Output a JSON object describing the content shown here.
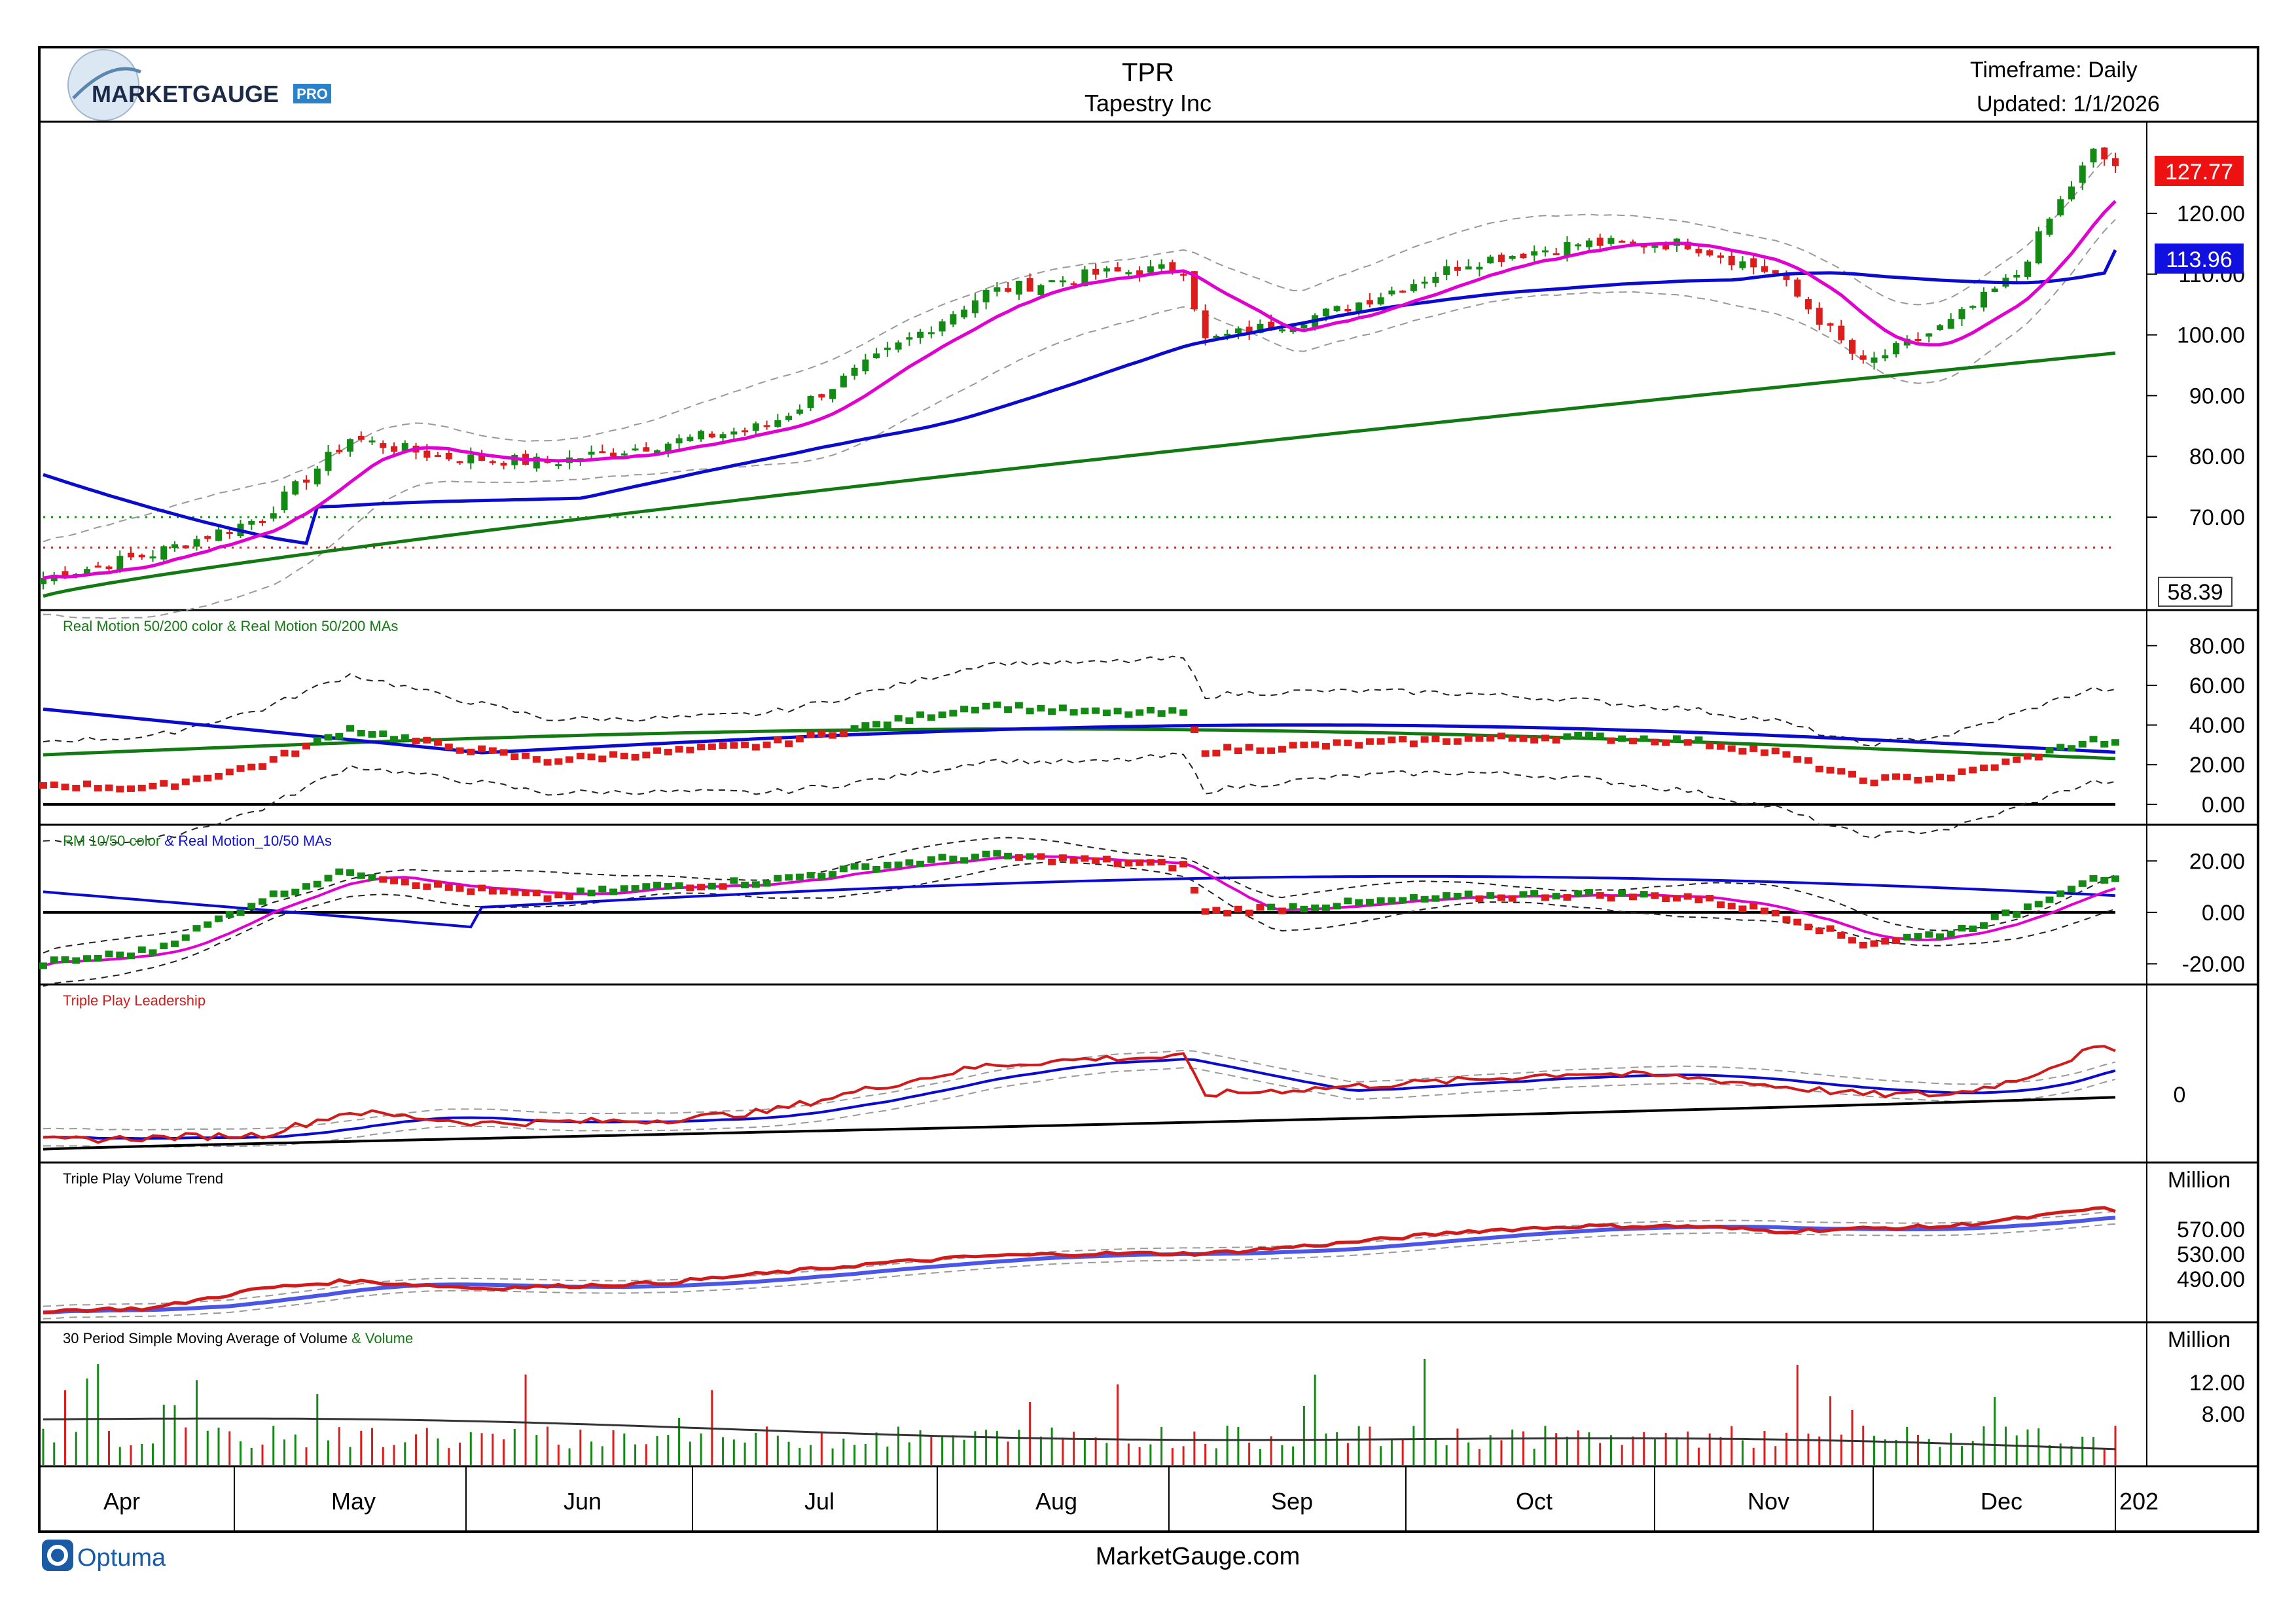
{
  "header": {
    "logo_main": "MARKETGAUGE",
    "logo_badge": "PRO",
    "symbol": "TPR",
    "company": "Tapestry Inc",
    "timeframe": "Timeframe: Daily",
    "updated": "Updated: 1/1/2026"
  },
  "footer": {
    "optuma": "Optuma",
    "site": "MarketGauge.com"
  },
  "colors": {
    "up": "#138a13",
    "down": "#dd1c1c",
    "ma10": "#e000d0",
    "ma50": "#0b0bd0",
    "ma200": "#137a13",
    "red_line": "#d11b1b",
    "vol_blue": "#4b56e6"
  },
  "chart_data": [
    {
      "panel": "price",
      "type": "candlestick",
      "y_ticks": [
        "120.00",
        "110.00",
        "100.00",
        "90.00",
        "80.00",
        "70.00"
      ],
      "ylim": [
        56,
        134
      ],
      "last_price": "127.77",
      "ma50_value": "113.96",
      "low_marker": "58.39",
      "horizontal_levels": [
        {
          "value": 70,
          "color": "green",
          "style": "dotted"
        },
        {
          "value": 65,
          "color": "red",
          "style": "dotted"
        }
      ],
      "approx_close_path": [
        [
          "Apr",
          60
        ],
        [
          "Apr",
          64
        ],
        [
          "May",
          70
        ],
        [
          "May",
          83
        ],
        [
          "May",
          80
        ],
        [
          "Jun",
          79
        ],
        [
          "Jun",
          82
        ],
        [
          "Jun",
          85
        ],
        [
          "Jul",
          96
        ],
        [
          "Jul",
          107
        ],
        [
          "Jul",
          110
        ],
        [
          "Aug",
          111
        ],
        [
          "Aug",
          99
        ],
        [
          "Sep",
          104
        ],
        [
          "Sep",
          112
        ],
        [
          "Oct",
          115
        ],
        [
          "Oct",
          115
        ],
        [
          "Oct",
          110
        ],
        [
          "Nov",
          95
        ],
        [
          "Nov",
          102
        ],
        [
          "Dec",
          110
        ],
        [
          "Dec",
          122
        ],
        [
          "Dec",
          130
        ],
        [
          "2026",
          127.77
        ]
      ],
      "series": [
        {
          "name": "MA10",
          "color": "#e000d0"
        },
        {
          "name": "MA50",
          "color": "#0b0bd0"
        },
        {
          "name": "MA200",
          "color": "#137a13"
        }
      ]
    },
    {
      "panel": "real_motion_50_200",
      "title_part1": "Real Motion 50/200 color",
      "title_part2": " & Real Motion 50/200 MAs",
      "type": "dot_plot",
      "y_ticks": [
        "80.00",
        "60.00",
        "40.00",
        "20.00",
        "0.00"
      ],
      "ylim": [
        -5,
        92
      ]
    },
    {
      "panel": "rm_10_50",
      "title_part1": "RM 10/50 color",
      "title_part2": " & Real Motion_10/50 MAs",
      "type": "dot_plot",
      "y_ticks": [
        "20.00",
        "0.00",
        "-20.00"
      ],
      "ylim": [
        -26,
        30
      ]
    },
    {
      "panel": "triple_play_leadership",
      "title": "Triple Play Leadership",
      "type": "line",
      "y_ticks": [
        "0"
      ]
    },
    {
      "panel": "triple_play_volume_trend",
      "title": "Triple Play Volume Trend",
      "type": "line",
      "unit": "Million",
      "y_ticks": [
        "570.00",
        "530.00",
        "490.00"
      ]
    },
    {
      "panel": "volume",
      "title_part1": "30 Period Simple Moving Average of Volume",
      "title_part2": " & Volume",
      "type": "bar",
      "unit": "Million",
      "y_ticks": [
        "12.00",
        "8.00"
      ]
    }
  ],
  "x_axis": {
    "labels": [
      "Apr",
      "May",
      "Jun",
      "Jul",
      "Aug",
      "Sep",
      "Oct",
      "Nov",
      "Dec",
      "202"
    ]
  }
}
